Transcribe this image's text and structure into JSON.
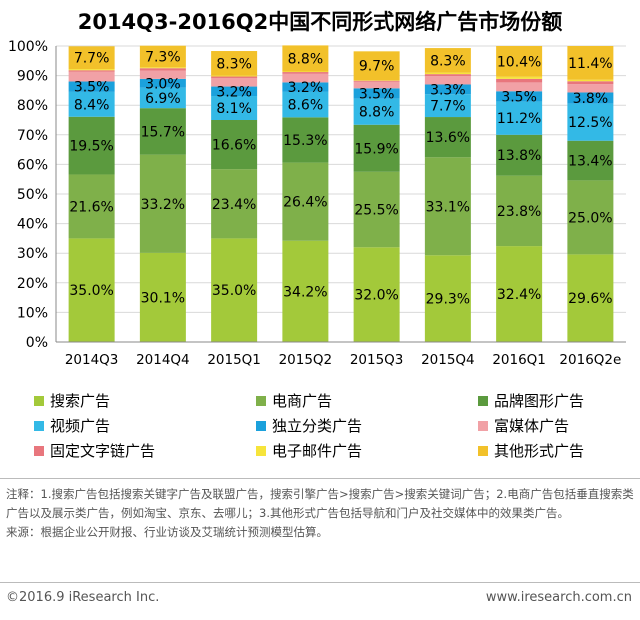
{
  "chart_data": {
    "type": "bar",
    "stacked": true,
    "title": "2014Q3-2016Q2中国不同形式网络广告市场份额",
    "categories": [
      "2014Q3",
      "2014Q4",
      "2015Q1",
      "2015Q2",
      "2015Q3",
      "2015Q4",
      "2016Q1",
      "2016Q2e"
    ],
    "yticks": [
      "0%",
      "10%",
      "20%",
      "30%",
      "40%",
      "50%",
      "60%",
      "70%",
      "80%",
      "90%",
      "100%"
    ],
    "ylim": [
      0,
      100
    ],
    "series": [
      {
        "name": "搜索广告",
        "color": "#a3c93a",
        "values": [
          35.0,
          30.1,
          35.0,
          34.2,
          32.0,
          29.3,
          32.4,
          29.6
        ],
        "labels": [
          "35.0%",
          "30.1%",
          "35.0%",
          "34.2%",
          "32.0%",
          "29.3%",
          "32.4%",
          "29.6%"
        ]
      },
      {
        "name": "电商广告",
        "color": "#7fb04a",
        "values": [
          21.6,
          33.2,
          23.4,
          26.4,
          25.5,
          33.1,
          23.8,
          25.0
        ],
        "labels": [
          "21.6%",
          "33.2%",
          "23.4%",
          "26.4%",
          "25.5%",
          "33.1%",
          "23.8%",
          "25.0%"
        ]
      },
      {
        "name": "品牌图形广告",
        "color": "#5b9a3e",
        "values": [
          19.5,
          15.7,
          16.6,
          15.3,
          15.9,
          13.6,
          13.8,
          13.4
        ],
        "labels": [
          "19.5%",
          "15.7%",
          "16.6%",
          "15.3%",
          "15.9%",
          "13.6%",
          "13.8%",
          "13.4%"
        ]
      },
      {
        "name": "视频广告",
        "color": "#33b9e6",
        "values": [
          8.4,
          6.9,
          8.1,
          8.6,
          8.8,
          7.7,
          11.2,
          12.5
        ],
        "labels": [
          "8.4%",
          "6.9%",
          "8.1%",
          "8.6%",
          "8.8%",
          "7.7%",
          "11.2%",
          "12.5%"
        ]
      },
      {
        "name": "独立分类广告",
        "color": "#1ba1dc",
        "values": [
          3.5,
          3.0,
          3.2,
          3.2,
          3.5,
          3.3,
          3.5,
          3.8
        ],
        "labels": [
          "3.5%",
          "3.0%",
          "3.2%",
          "3.2%",
          "3.5%",
          "3.3%",
          "3.5%",
          "3.8%"
        ]
      },
      {
        "name": "富媒体广告",
        "color": "#f1a1a6",
        "values": [
          3.3,
          2.8,
          2.9,
          2.9,
          2.3,
          2.8,
          3.0,
          2.8
        ],
        "labels": [
          "",
          "",
          "",
          "",
          "",
          "",
          "",
          ""
        ]
      },
      {
        "name": "固定文字链广告",
        "color": "#e8767d",
        "values": [
          0.5,
          0.8,
          0.5,
          0.6,
          0.3,
          0.7,
          1.2,
          1.0
        ],
        "labels": [
          "",
          "",
          "",
          "",
          "",
          "",
          "",
          ""
        ]
      },
      {
        "name": "电子邮件广告",
        "color": "#f6e43b",
        "values": [
          0.4,
          0.3,
          0.3,
          0.2,
          0.2,
          0.5,
          0.7,
          0.5
        ],
        "labels": [
          "",
          "",
          "",
          "",
          "",
          "",
          "",
          ""
        ]
      },
      {
        "name": "其他形式广告",
        "color": "#f2c12a",
        "values": [
          7.7,
          7.3,
          8.3,
          8.8,
          9.7,
          8.3,
          10.4,
          11.4
        ],
        "labels": [
          "7.7%",
          "7.3%",
          "8.3%",
          "8.8%",
          "9.7%",
          "8.3%",
          "10.4%",
          "11.4%"
        ]
      }
    ],
    "legend_position": "bottom"
  },
  "legend": [
    {
      "label": "搜索广告",
      "color": "#a3c93a"
    },
    {
      "label": "电商广告",
      "color": "#7fb04a"
    },
    {
      "label": "品牌图形广告",
      "color": "#5b9a3e"
    },
    {
      "label": "视频广告",
      "color": "#33b9e6"
    },
    {
      "label": "独立分类广告",
      "color": "#1ba1dc"
    },
    {
      "label": "富媒体广告",
      "color": "#f1a1a6"
    },
    {
      "label": "固定文字链广告",
      "color": "#e8767d"
    },
    {
      "label": "电子邮件广告",
      "color": "#f6e43b"
    },
    {
      "label": "其他形式广告",
      "color": "#f2c12a"
    }
  ],
  "notes": {
    "line1": "注释：1.搜索广告包括搜索关键字广告及联盟广告，搜索引擎广告>搜索广告>搜索关键词广告；2.电商广告包括垂直搜索类广告以及展示类广告，例如淘宝、京东、去哪儿；3.其他形式广告包括导航和门户及社交媒体中的效果类广告。",
    "line2": "来源：根据企业公开财报、行业访谈及艾瑞统计预测模型估算。"
  },
  "footer": {
    "copyright": "©2016.9 iResearch Inc.",
    "site": "www.iresearch.com.cn"
  }
}
